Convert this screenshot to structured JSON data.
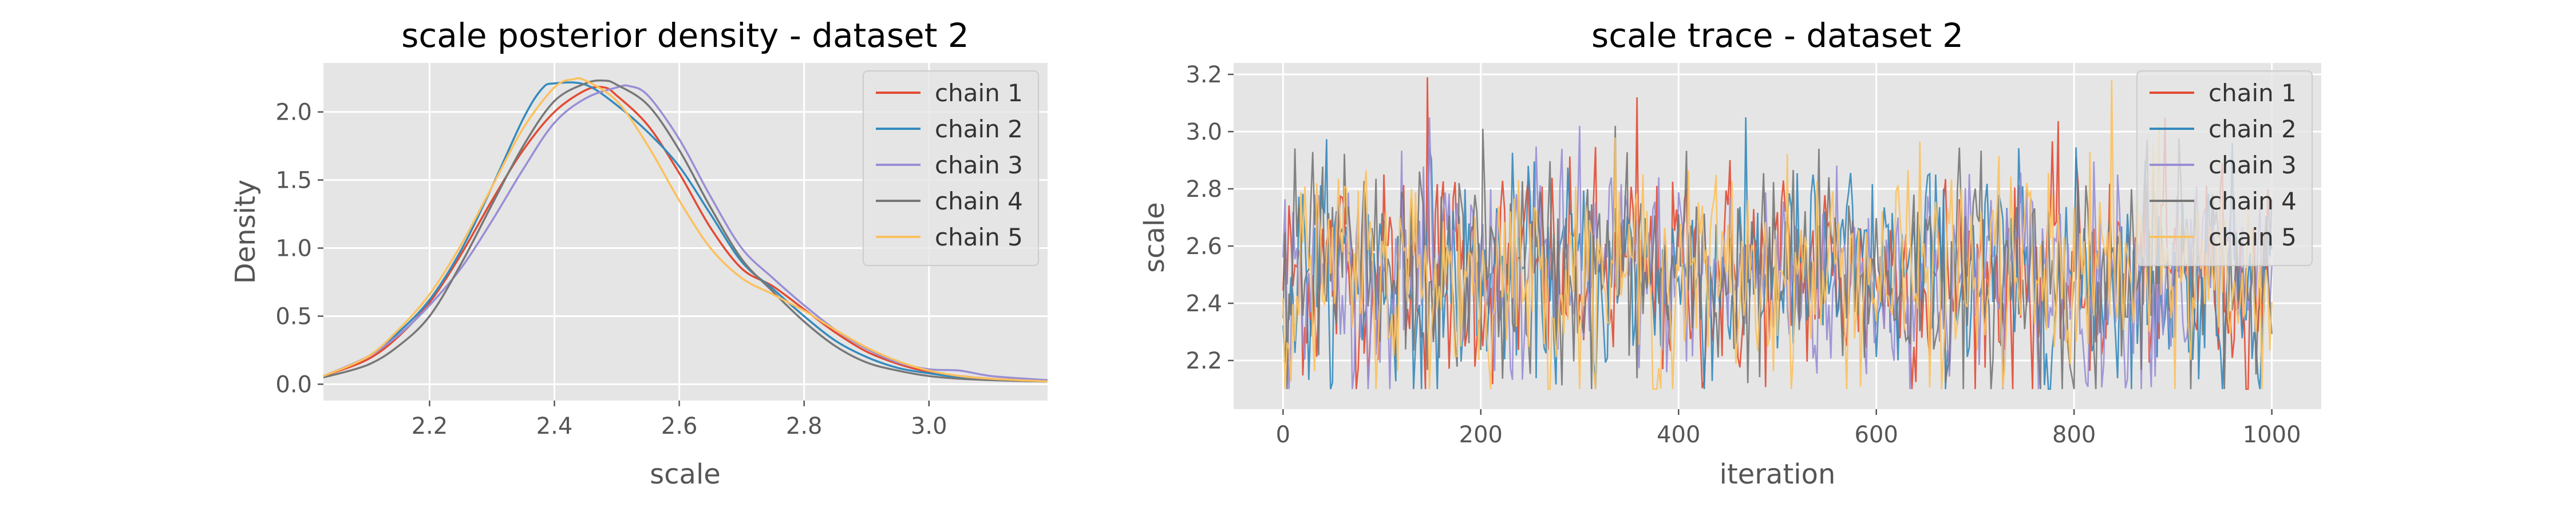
{
  "colors": [
    "#e24a33",
    "#348abd",
    "#988ed5",
    "#777777",
    "#fbc15e"
  ],
  "chart_data": [
    {
      "type": "line",
      "title": "scale posterior density - dataset 2",
      "xlabel": "scale",
      "ylabel": "Density",
      "xlim": [
        2.03,
        3.19
      ],
      "ylim": [
        -0.12,
        2.36
      ],
      "xticks": [
        2.2,
        2.4,
        2.6,
        2.8,
        3.0
      ],
      "xtick_labels": [
        "2.2",
        "2.4",
        "2.6",
        "2.8",
        "3.0"
      ],
      "yticks": [
        0.0,
        0.5,
        1.0,
        1.5,
        2.0
      ],
      "ytick_labels": [
        "0.0",
        "0.5",
        "1.0",
        "1.5",
        "2.0"
      ],
      "grid": true,
      "legend": "top-right",
      "series": [
        {
          "name": "chain 1",
          "x": [
            2.03,
            2.1,
            2.15,
            2.2,
            2.25,
            2.3,
            2.35,
            2.4,
            2.45,
            2.48,
            2.5,
            2.55,
            2.6,
            2.65,
            2.7,
            2.75,
            2.8,
            2.85,
            2.9,
            2.95,
            3.0,
            3.05,
            3.1,
            3.19
          ],
          "values": [
            0.06,
            0.18,
            0.35,
            0.6,
            0.95,
            1.35,
            1.72,
            2.0,
            2.16,
            2.18,
            2.12,
            1.9,
            1.55,
            1.15,
            0.85,
            0.72,
            0.55,
            0.38,
            0.24,
            0.15,
            0.09,
            0.06,
            0.04,
            0.02
          ]
        },
        {
          "name": "chain 2",
          "x": [
            2.03,
            2.1,
            2.15,
            2.2,
            2.25,
            2.3,
            2.35,
            2.38,
            2.4,
            2.45,
            2.5,
            2.55,
            2.6,
            2.65,
            2.7,
            2.75,
            2.8,
            2.85,
            2.9,
            2.95,
            3.0,
            3.05,
            3.1,
            3.19
          ],
          "values": [
            0.06,
            0.2,
            0.38,
            0.62,
            0.98,
            1.45,
            1.95,
            2.17,
            2.21,
            2.2,
            2.05,
            1.85,
            1.6,
            1.25,
            0.9,
            0.7,
            0.5,
            0.32,
            0.2,
            0.12,
            0.08,
            0.05,
            0.03,
            0.02
          ]
        },
        {
          "name": "chain 3",
          "x": [
            2.03,
            2.1,
            2.15,
            2.2,
            2.25,
            2.3,
            2.35,
            2.4,
            2.45,
            2.5,
            2.52,
            2.55,
            2.6,
            2.65,
            2.7,
            2.75,
            2.8,
            2.85,
            2.9,
            2.95,
            3.0,
            3.05,
            3.1,
            3.19
          ],
          "values": [
            0.06,
            0.2,
            0.36,
            0.58,
            0.85,
            1.2,
            1.58,
            1.92,
            2.1,
            2.18,
            2.19,
            2.12,
            1.8,
            1.38,
            1.0,
            0.78,
            0.58,
            0.4,
            0.26,
            0.16,
            0.11,
            0.1,
            0.06,
            0.03
          ]
        },
        {
          "name": "chain 4",
          "x": [
            2.03,
            2.1,
            2.15,
            2.2,
            2.25,
            2.3,
            2.35,
            2.4,
            2.45,
            2.48,
            2.5,
            2.55,
            2.6,
            2.65,
            2.7,
            2.75,
            2.8,
            2.85,
            2.9,
            2.95,
            3.0,
            3.05,
            3.1,
            3.19
          ],
          "values": [
            0.05,
            0.14,
            0.28,
            0.5,
            0.88,
            1.32,
            1.75,
            2.08,
            2.21,
            2.23,
            2.2,
            2.05,
            1.72,
            1.3,
            0.92,
            0.68,
            0.46,
            0.28,
            0.16,
            0.1,
            0.06,
            0.04,
            0.03,
            0.02
          ]
        },
        {
          "name": "chain 5",
          "x": [
            2.03,
            2.1,
            2.15,
            2.2,
            2.25,
            2.3,
            2.35,
            2.4,
            2.43,
            2.45,
            2.5,
            2.55,
            2.6,
            2.65,
            2.7,
            2.75,
            2.8,
            2.85,
            2.9,
            2.95,
            3.0,
            3.05,
            3.1,
            3.19
          ],
          "values": [
            0.06,
            0.2,
            0.4,
            0.66,
            1.02,
            1.45,
            1.88,
            2.18,
            2.24,
            2.23,
            2.08,
            1.75,
            1.35,
            1.0,
            0.78,
            0.66,
            0.54,
            0.4,
            0.27,
            0.17,
            0.1,
            0.06,
            0.04,
            0.02
          ]
        }
      ]
    },
    {
      "type": "line",
      "title": "scale trace - dataset 2",
      "xlabel": "iteration",
      "ylabel": "scale",
      "xlim": [
        -50,
        1050
      ],
      "ylim": [
        2.03,
        3.24
      ],
      "xticks": [
        0,
        200,
        400,
        600,
        800,
        1000
      ],
      "xtick_labels": [
        "0",
        "200",
        "400",
        "600",
        "800",
        "1000"
      ],
      "yticks": [
        2.2,
        2.4,
        2.6,
        2.8,
        3.0,
        3.2
      ],
      "ytick_labels": [
        "2.2",
        "2.4",
        "2.6",
        "2.8",
        "3.0",
        "3.2"
      ],
      "grid": true,
      "legend": "top-right",
      "n_iterations": 1000,
      "series_mean": 2.5,
      "series_sd": 0.18,
      "spikes": [
        {
          "series": "chain 1",
          "x": 145,
          "y": 3.19
        },
        {
          "series": "chain 1",
          "x": 357,
          "y": 3.12
        },
        {
          "series": "chain 5",
          "x": 838,
          "y": 3.18
        },
        {
          "series": "chain 4",
          "x": 202,
          "y": 3.01
        },
        {
          "series": "chain 3",
          "x": 300,
          "y": 3.02
        },
        {
          "series": "chain 4",
          "x": 335,
          "y": 3.02
        },
        {
          "series": "chain 4",
          "x": 3,
          "y": 2.1
        }
      ],
      "series": [
        {
          "name": "chain 1"
        },
        {
          "name": "chain 2"
        },
        {
          "name": "chain 3"
        },
        {
          "name": "chain 4"
        },
        {
          "name": "chain 5"
        }
      ]
    }
  ]
}
